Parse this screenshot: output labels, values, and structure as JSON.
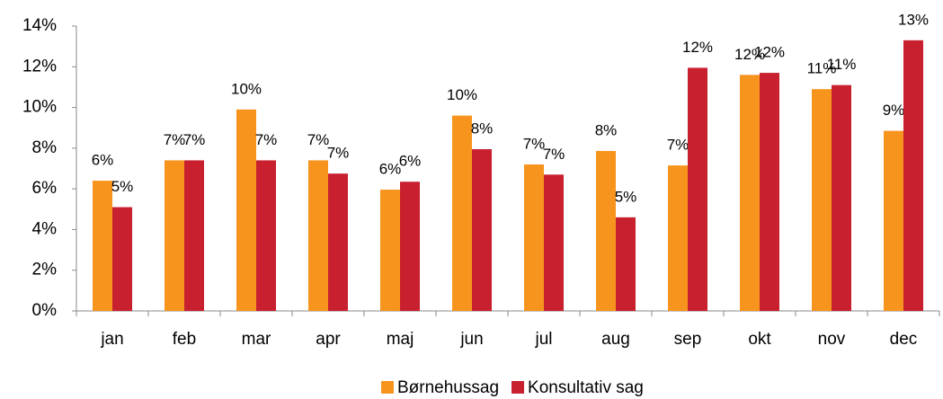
{
  "chart_data": {
    "type": "bar",
    "categories": [
      "jan",
      "feb",
      "mar",
      "apr",
      "maj",
      "jun",
      "jul",
      "aug",
      "sep",
      "okt",
      "nov",
      "dec"
    ],
    "series": [
      {
        "name": "Børnehussag",
        "color": "#f7941d",
        "values": [
          6.4,
          7.4,
          9.9,
          7.4,
          5.96,
          9.6,
          7.2,
          7.86,
          7.15,
          11.6,
          10.9,
          8.85
        ],
        "value_labels": [
          "6%",
          "7%",
          "10%",
          "7%",
          "6%",
          "10%",
          "7%",
          "8%",
          "7%",
          "12%",
          "11%",
          "9%"
        ]
      },
      {
        "name": "Konsultativ sag",
        "color": "#c8202f",
        "values": [
          5.1,
          7.4,
          7.4,
          6.75,
          6.35,
          7.95,
          6.7,
          4.6,
          11.95,
          11.7,
          11.1,
          13.3
        ],
        "value_labels": [
          "5%",
          "7%",
          "7%",
          "7%",
          "6%",
          "8%",
          "7%",
          "5%",
          "12%",
          "12%",
          "11%",
          "13%"
        ]
      }
    ],
    "ylim": [
      0,
      14
    ],
    "yticks": [
      {
        "value": 0,
        "label": "0%"
      },
      {
        "value": 2,
        "label": "2%"
      },
      {
        "value": 4,
        "label": "4%"
      },
      {
        "value": 6,
        "label": "6%"
      },
      {
        "value": 8,
        "label": "8%"
      },
      {
        "value": 10,
        "label": "10%"
      },
      {
        "value": 12,
        "label": "12%"
      },
      {
        "value": 14,
        "label": "14%"
      }
    ],
    "legend": "bottom"
  }
}
